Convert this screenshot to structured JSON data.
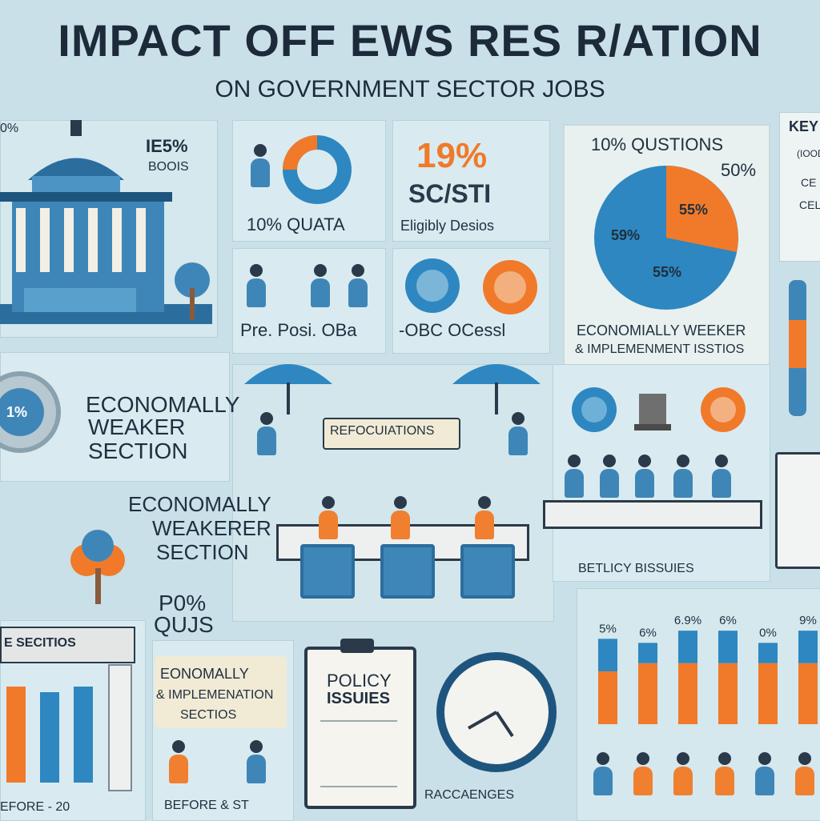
{
  "header": {
    "title": "IMPACT OFF EWS RES R/ATION",
    "subtitle": "ON GOVERNMENT SECTOR JOBS"
  },
  "labels": {
    "pct_left": "0%",
    "pct_top": "IE5%",
    "pct_top_sub": "BOOIS",
    "quota": "10% QUATA",
    "sc_st_pct": "19%",
    "sc_st": "SC/STI",
    "eligibility": "Eligibly Desios",
    "pre_post": "Pre. Posi. OBa",
    "obc": "-OBC OCessl",
    "ews_1": "ECONOMALLY",
    "ews_2": "WEAKER",
    "ews_3": "SECTION",
    "ews_b1": "ECONOMALLY",
    "ews_b2": "WEAKERER",
    "ews_b3": "SECTION",
    "reallocations": "REFOCUIATIONS",
    "pct_quota": "P0%",
    "pct_quota_sub": "QUJS",
    "sections": "E SECITIOS",
    "before": "EFORE - 20",
    "econ_impl_1": "EONOMALLY",
    "econ_impl_2": "& IMPLEMENATION",
    "econ_impl_3": "SECTIOS",
    "before_st": "BEFORE & ST",
    "policy_1": "POLICY",
    "policy_2": "ISSUIES",
    "challenges": "RACCAENGES",
    "policy_issues": "BETLICY BISSUIES",
    "gear_pct": "1%"
  },
  "pie": {
    "title": "10% QUSTIONS",
    "right_label": "50%",
    "slice_label_1": "59%",
    "slice_label_2": "55%",
    "slice_label_3": "55%",
    "caption_1": "ECONOMIALLY WEEKER",
    "caption_2": "& IMPLEMENMENT ISSTIOS",
    "colors": {
      "blue": "#2e87c0",
      "orange": "#f07a2a"
    }
  },
  "key_box": {
    "title": "KEY",
    "items": [
      "(IOOD",
      "CE",
      "CEL"
    ]
  },
  "chart_data": {
    "type": "bar",
    "categories": [
      "",
      "",
      "",
      "",
      "",
      ""
    ],
    "series": [
      {
        "values": [
          13,
          15,
          15,
          15,
          15,
          15
        ]
      },
      {
        "values": [
          8,
          5,
          8,
          8,
          5,
          8
        ]
      }
    ],
    "bar_labels": [
      "5%",
      "6%",
      "6.9%",
      "6%",
      "0%",
      "9%"
    ],
    "ylim": [
      0,
      25
    ],
    "colors": [
      "#f07a2a",
      "#2e87c0"
    ]
  }
}
